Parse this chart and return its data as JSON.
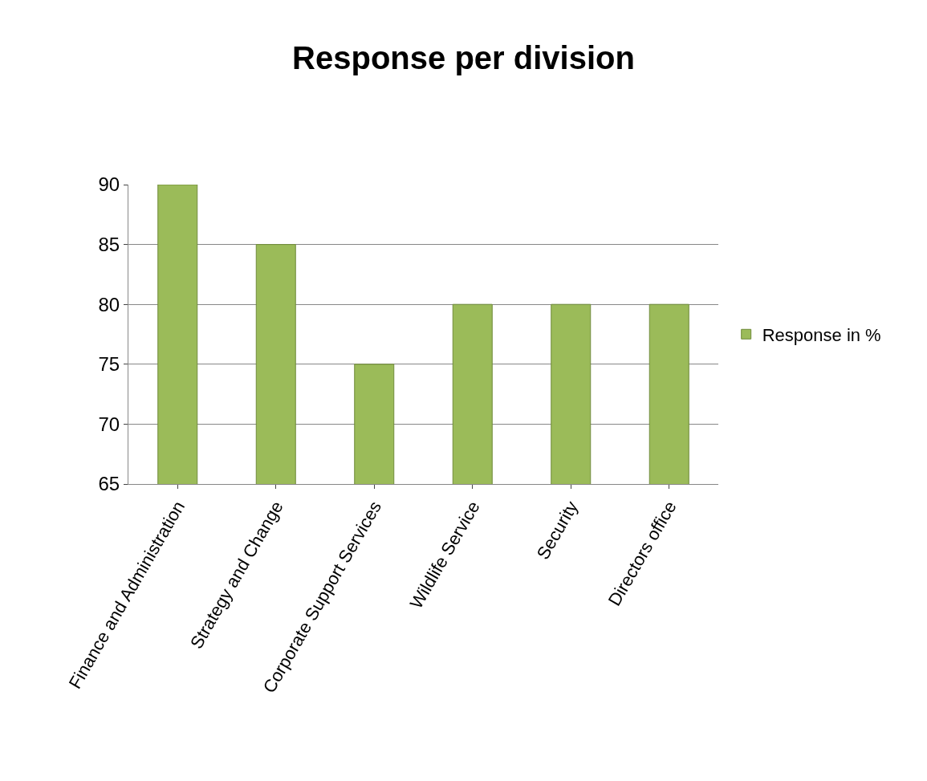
{
  "chart_data": {
    "type": "bar",
    "title": "Response per division",
    "categories": [
      "Finance and Administration",
      "Strategy and Change",
      "Corporate Support Services",
      "Wildlife Service",
      "Security",
      "Directors office"
    ],
    "series": [
      {
        "name": "Response in %",
        "color": "#9bbb59",
        "values": [
          90,
          85,
          75,
          80,
          80,
          80
        ]
      }
    ],
    "ylim": [
      65,
      90
    ],
    "yticks": [
      65,
      70,
      75,
      80,
      85,
      90
    ],
    "grid": "y",
    "legend": "right"
  }
}
